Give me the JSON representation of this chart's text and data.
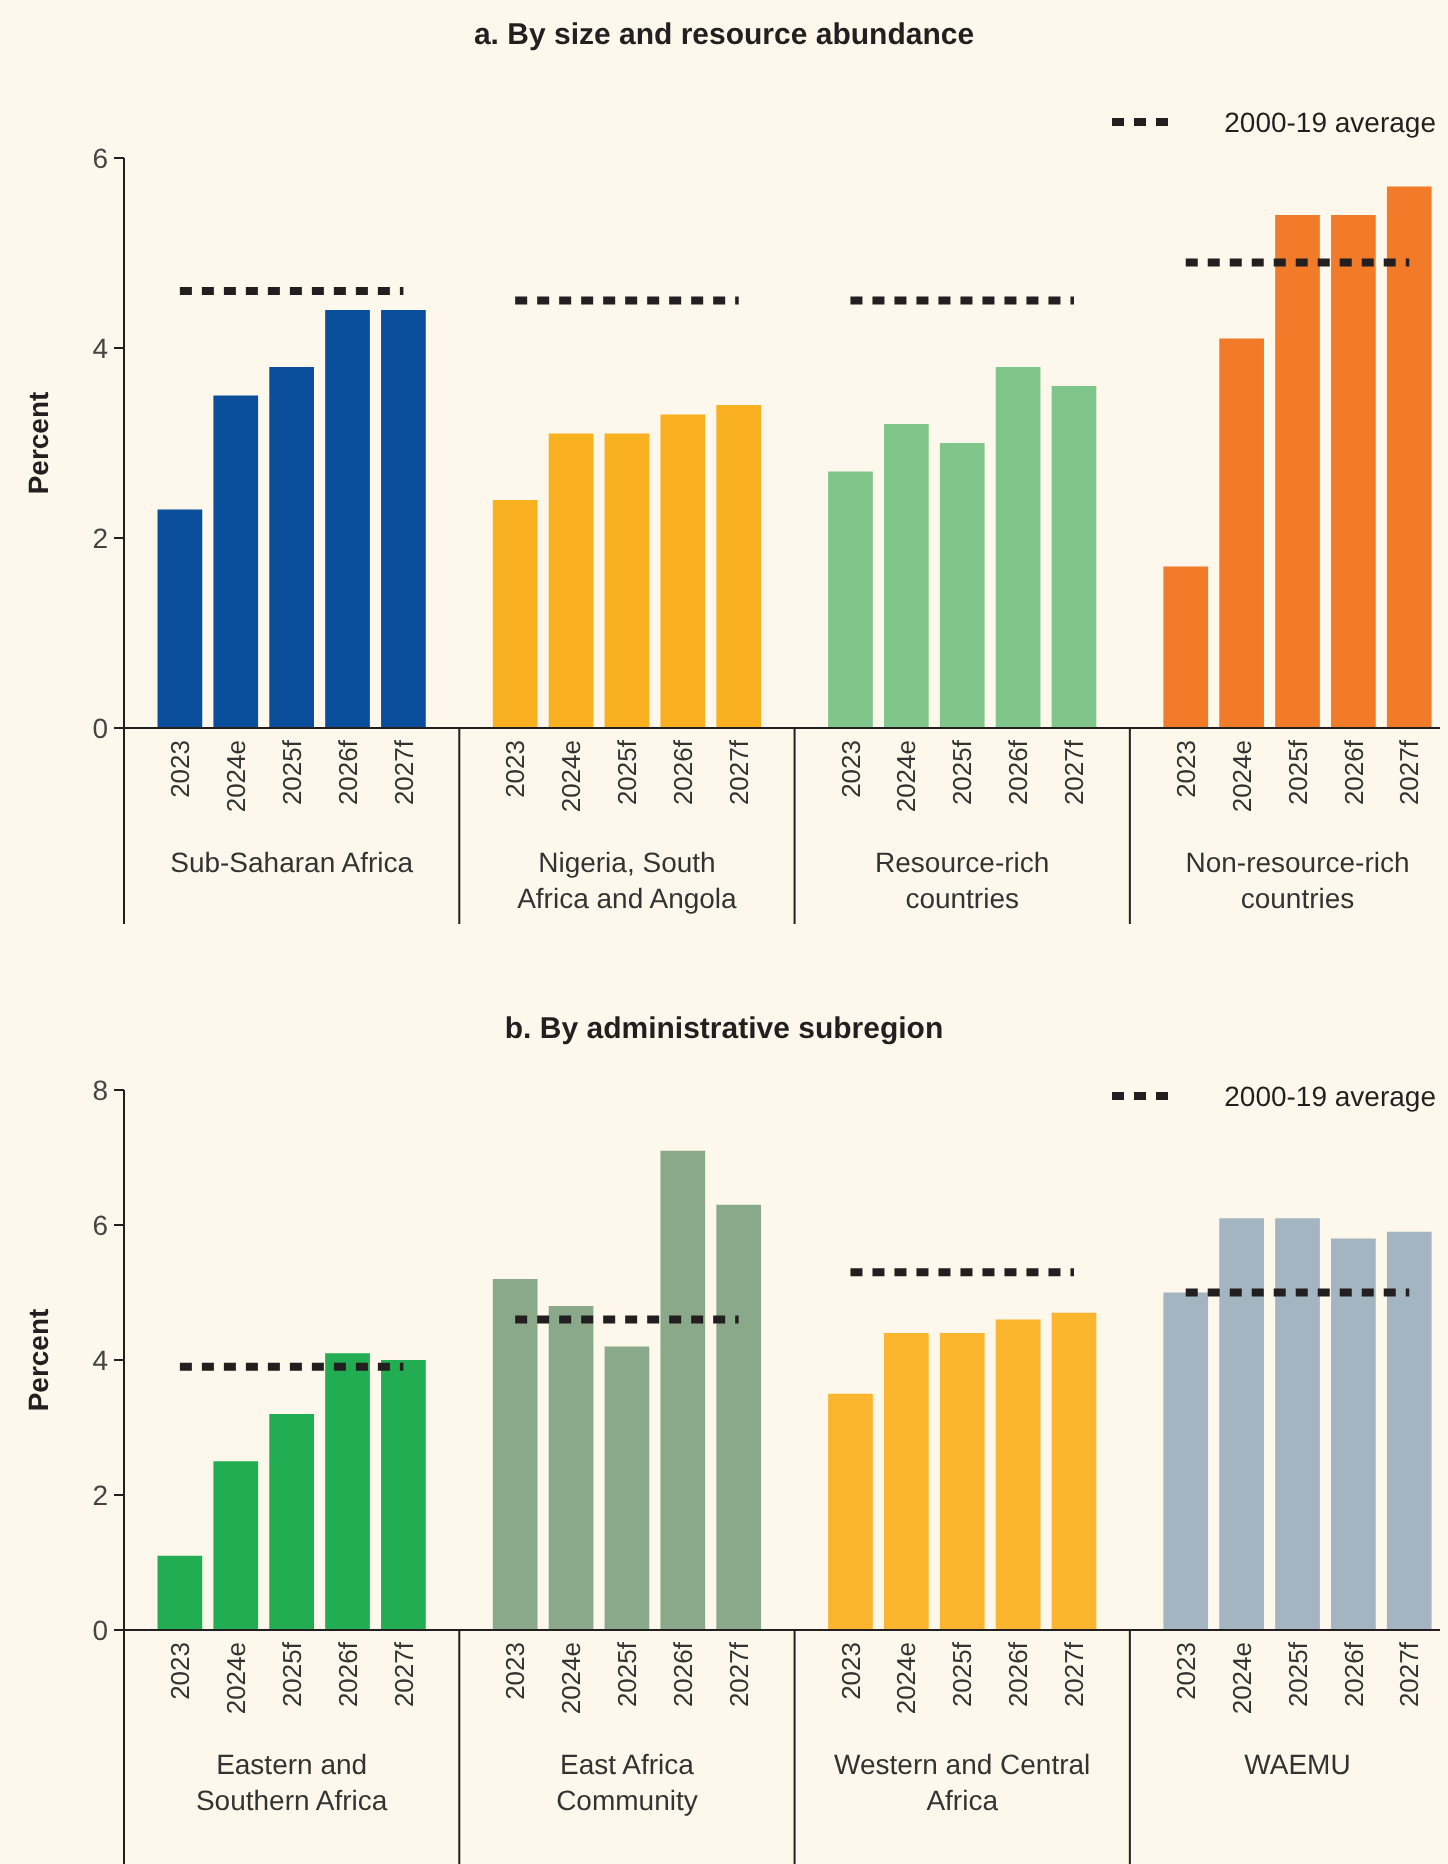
{
  "chart_data": [
    {
      "type": "bar",
      "title": "a. By size and resource abundance",
      "ylabel": "Percent",
      "ylim": [
        0,
        6
      ],
      "yticks": [
        0,
        2,
        4,
        6
      ],
      "legend": "top right",
      "line_style": "dashed",
      "marker": "none",
      "categories": [
        "2023",
        "2024e",
        "2025f",
        "2026f",
        "2027f",
        null,
        "2023",
        "2024e",
        "2025f",
        "2026f",
        "2027f",
        null,
        "2023",
        "2024e",
        "2025f",
        "2026f",
        "2027f",
        null,
        "2023",
        "2024e",
        "2025f",
        "2026f",
        "2027f"
      ],
      "series": [
        {
          "type": "bar",
          "colors": [
            "#0b4f9c",
            "#0b4f9c",
            "#0b4f9c",
            "#0b4f9c",
            "#0b4f9c",
            null,
            "#f9b121",
            "#f9b121",
            "#f9b121",
            "#f9b121",
            "#f9b121",
            null,
            "#80c58a",
            "#80c58a",
            "#80c58a",
            "#80c58a",
            "#80c58a",
            null,
            "#f27b29",
            "#f27b29",
            "#f27b29",
            "#f27b29",
            "#f27b29"
          ],
          "values": [
            2.3,
            3.5,
            3.8,
            4.4,
            4.4,
            null,
            2.4,
            3.1,
            3.1,
            3.3,
            3.4,
            null,
            2.7,
            3.2,
            3.0,
            3.8,
            3.6,
            null,
            1.7,
            4.1,
            5.4,
            5.4,
            5.7
          ]
        },
        {
          "type": "line",
          "name": "2000-19 average",
          "color": "#231f20",
          "values": [
            4.6,
            4.6,
            4.6,
            4.6,
            4.6,
            null,
            4.5,
            4.5,
            4.5,
            4.5,
            4.5,
            null,
            4.5,
            4.5,
            4.5,
            4.5,
            4.5,
            null,
            4.9,
            4.9,
            4.9,
            4.9,
            4.9
          ]
        }
      ],
      "annotations": [
        "Sub-Saharan Africa",
        "Nigeria, South Africa and Angola",
        "Resource-rich countries",
        "Non-resource-rich countries"
      ]
    },
    {
      "type": "bar",
      "title": "b. By administrative subregion",
      "ylabel": "Percent",
      "ylim": [
        0,
        8
      ],
      "yticks": [
        0,
        2,
        4,
        6,
        8
      ],
      "legend": "top right",
      "line_style": "dashed",
      "marker": "none",
      "categories": [
        "2023",
        "2024e",
        "2025f",
        "2026f",
        "2027f",
        null,
        "2023",
        "2024e",
        "2025f",
        "2026f",
        "2027f",
        null,
        "2023",
        "2024e",
        "2025f",
        "2026f",
        "2027f",
        null,
        "2023",
        "2024e",
        "2025f",
        "2026f",
        "2027f"
      ],
      "series": [
        {
          "type": "bar",
          "colors": [
            "#22ad52",
            "#22ad52",
            "#22ad52",
            "#22ad52",
            "#22ad52",
            null,
            "#8aa88a",
            "#8aa88a",
            "#8aa88a",
            "#8aa88a",
            "#8aa88a",
            null,
            "#fbb52f",
            "#fbb52f",
            "#fbb52f",
            "#fbb52f",
            "#fbb52f",
            null,
            "#a3b5c0",
            "#a3b5c0",
            "#a3b5c0",
            "#a3b5c0",
            "#a3b5c0"
          ],
          "values": [
            1.1,
            2.5,
            3.2,
            4.1,
            4.0,
            null,
            5.2,
            4.8,
            4.2,
            7.1,
            6.3,
            null,
            3.5,
            4.4,
            4.4,
            4.6,
            4.7,
            null,
            5.0,
            6.1,
            6.1,
            5.8,
            5.9
          ]
        },
        {
          "type": "line",
          "name": "2000-19 average",
          "color": "#231f20",
          "values": [
            3.9,
            3.9,
            3.9,
            3.9,
            3.9,
            null,
            4.6,
            4.6,
            4.6,
            4.6,
            4.6,
            null,
            5.3,
            5.3,
            5.3,
            5.3,
            5.3,
            null,
            5.0,
            5.0,
            5.0,
            5.0,
            5.0
          ]
        }
      ],
      "annotations": [
        "Eastern and Southern Africa",
        "East Africa Community",
        "Western and Central Africa",
        "WAEMU"
      ]
    }
  ]
}
